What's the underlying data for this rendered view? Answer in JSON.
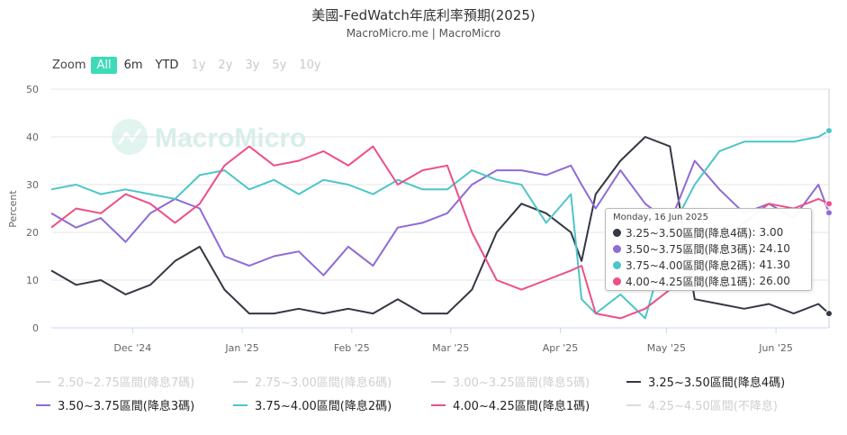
{
  "title": "美國-FedWatch年底利率預期(2025)",
  "subtitle": "MacroMicro.me | MacroMicro",
  "watermark": "MacroMicro",
  "zoom": {
    "label": "Zoom",
    "buttons": [
      {
        "label": "All",
        "state": "active"
      },
      {
        "label": "6m",
        "state": "enabled"
      },
      {
        "label": "YTD",
        "state": "enabled"
      },
      {
        "label": "1y",
        "state": "disabled"
      },
      {
        "label": "2y",
        "state": "disabled"
      },
      {
        "label": "3y",
        "state": "disabled"
      },
      {
        "label": "5y",
        "state": "disabled"
      },
      {
        "label": "10y",
        "state": "disabled"
      }
    ]
  },
  "tooltip": {
    "date": "Monday, 16 Jun 2025",
    "rows": [
      {
        "label": "3.25~3.50區間(降息4碼)",
        "value": "3.00",
        "color": "#333843"
      },
      {
        "label": "3.50~3.75區間(降息3碼)",
        "value": "24.10",
        "color": "#8e6bd6"
      },
      {
        "label": "3.75~4.00區間(降息2碼)",
        "value": "41.30",
        "color": "#4dc6c8"
      },
      {
        "label": "4.00~4.25區間(降息1碼)",
        "value": "26.00",
        "color": "#ee4f85"
      }
    ]
  },
  "legend": [
    {
      "label": "2.50~2.75區間(降息7碼)",
      "color": "#d9d9d9",
      "visible": false
    },
    {
      "label": "2.75~3.00區間(降息6碼)",
      "color": "#d9d9d9",
      "visible": false
    },
    {
      "label": "3.00~3.25區間(降息5碼)",
      "color": "#d9d9d9",
      "visible": false
    },
    {
      "label": "3.25~3.50區間(降息4碼)",
      "color": "#333843",
      "visible": true
    },
    {
      "label": "3.50~3.75區間(降息3碼)",
      "color": "#8e6bd6",
      "visible": true
    },
    {
      "label": "3.75~4.00區間(降息2碼)",
      "color": "#4dc6c8",
      "visible": true
    },
    {
      "label": "4.00~4.25區間(降息1碼)",
      "color": "#ee4f85",
      "visible": true
    },
    {
      "label": "4.25~4.50區間(不降息)",
      "color": "#d9d9d9",
      "visible": false
    }
  ],
  "chart_data": {
    "type": "line",
    "ylabel": "Percent",
    "ylim": [
      0,
      50
    ],
    "yticks": [
      0,
      10,
      20,
      30,
      40,
      50
    ],
    "xlim": [
      "2024-11-08",
      "2025-06-16"
    ],
    "xticks": [
      {
        "date": "2024-12-01",
        "label": "Dec '24"
      },
      {
        "date": "2025-01-01",
        "label": "Jan '25"
      },
      {
        "date": "2025-02-01",
        "label": "Feb '25"
      },
      {
        "date": "2025-03-01",
        "label": "Mar '25"
      },
      {
        "date": "2025-04-01",
        "label": "Apr '25"
      },
      {
        "date": "2025-05-01",
        "label": "May '25"
      },
      {
        "date": "2025-06-01",
        "label": "Jun '25"
      }
    ],
    "crosshair_date": "2025-06-16",
    "dates": [
      "2024-11-08",
      "2024-11-15",
      "2024-11-22",
      "2024-11-29",
      "2024-12-06",
      "2024-12-13",
      "2024-12-20",
      "2024-12-27",
      "2025-01-03",
      "2025-01-10",
      "2025-01-17",
      "2025-01-24",
      "2025-01-31",
      "2025-02-07",
      "2025-02-14",
      "2025-02-21",
      "2025-02-28",
      "2025-03-07",
      "2025-03-14",
      "2025-03-21",
      "2025-03-28",
      "2025-04-04",
      "2025-04-07",
      "2025-04-11",
      "2025-04-18",
      "2025-04-25",
      "2025-05-02",
      "2025-05-09",
      "2025-05-16",
      "2025-05-23",
      "2025-05-30",
      "2025-06-06",
      "2025-06-13",
      "2025-06-16"
    ],
    "series": [
      {
        "name": "3.25~3.50區間(降息4碼)",
        "color": "#333843",
        "values": [
          12,
          9,
          10,
          7,
          9,
          14,
          17,
          8,
          3,
          3,
          4,
          3,
          4,
          3,
          6,
          3,
          3,
          8,
          20,
          26,
          24,
          20,
          14,
          28,
          35,
          40,
          38,
          6,
          5,
          4,
          5,
          3,
          5,
          3.0
        ]
      },
      {
        "name": "3.50~3.75區間(降息3碼)",
        "color": "#8e6bd6",
        "values": [
          24,
          21,
          23,
          18,
          24,
          27,
          25,
          15,
          13,
          15,
          16,
          11,
          17,
          13,
          21,
          22,
          24,
          30,
          33,
          33,
          32,
          34,
          30,
          25,
          33,
          26,
          22,
          35,
          29,
          24,
          26,
          23,
          30,
          24.1
        ]
      },
      {
        "name": "3.75~4.00區間(降息2碼)",
        "color": "#4dc6c8",
        "values": [
          29,
          30,
          28,
          29,
          28,
          27,
          32,
          33,
          29,
          31,
          28,
          31,
          30,
          28,
          31,
          29,
          29,
          33,
          31,
          30,
          22,
          28,
          6,
          3,
          7,
          2,
          20,
          30,
          37,
          39,
          39,
          39,
          40,
          41.3
        ]
      },
      {
        "name": "4.00~4.25區間(降息1碼)",
        "color": "#ee4f85",
        "values": [
          21,
          25,
          24,
          28,
          26,
          22,
          26,
          34,
          38,
          34,
          35,
          37,
          34,
          38,
          30,
          33,
          34,
          20,
          10,
          8,
          10,
          12,
          13,
          3,
          2,
          4,
          8,
          12,
          18,
          22,
          26,
          25,
          27,
          26.0
        ]
      }
    ]
  }
}
